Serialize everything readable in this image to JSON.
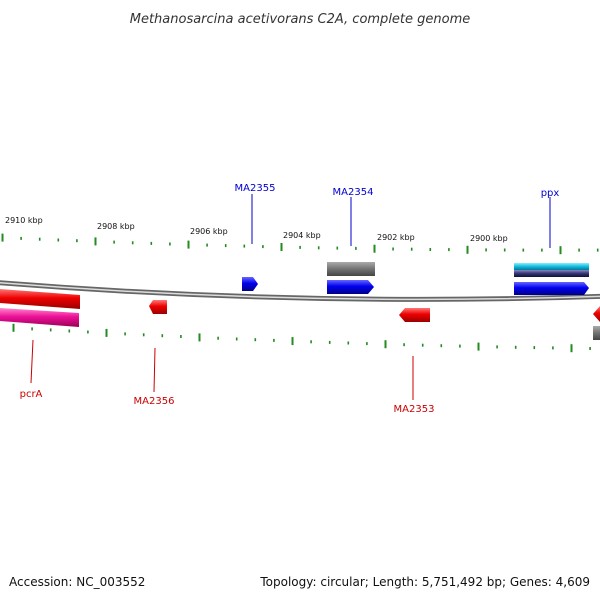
{
  "title": "Methanosarcina acetivorans C2A, complete genome",
  "footer": {
    "accession": "Accession: NC_003552",
    "topology": "Topology: circular; Length: 5,751,492 bp; Genes: 4,609"
  },
  "scale_labels": [
    "2910 kbp",
    "2908 kbp",
    "2906 kbp",
    "2904 kbp",
    "2902 kbp",
    "2900 kbp"
  ],
  "genes_top": [
    "MA2355",
    "MA2354",
    "ppx"
  ],
  "genes_bottom": [
    "pcrA",
    "MA2356",
    "MA2353"
  ],
  "colors": {
    "forward_label": "#0000cc",
    "reverse_label": "#cc0000",
    "forward_gene": "#0000ee",
    "reverse_gene": "#ee0000",
    "tick": "#228b22",
    "backbone": "#888888"
  }
}
